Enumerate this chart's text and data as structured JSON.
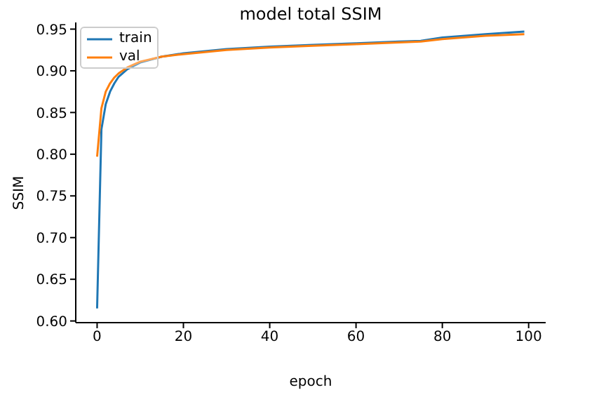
{
  "chart_data": {
    "type": "line",
    "title": "model total SSIM",
    "xlabel": "epoch",
    "ylabel": "SSIM",
    "xlim": [
      -4.95,
      103.95
    ],
    "xticks": [
      0,
      20,
      40,
      60,
      80,
      100
    ],
    "ylim": [
      0.598,
      0.958
    ],
    "yticks": [
      {
        "value": 0.6,
        "label": "0.60"
      },
      0.65,
      {
        "value": 0.7,
        "label": "0.70"
      },
      0.75,
      {
        "value": 0.8,
        "label": "0.80"
      },
      0.85,
      {
        "value": 0.9,
        "label": "0.90"
      },
      0.95
    ],
    "legend": "top left",
    "grid": false,
    "series": [
      {
        "name": "train",
        "color": "#1f77b4",
        "x": [
          0,
          1,
          2,
          3,
          4,
          5,
          7,
          10,
          15,
          20,
          30,
          40,
          50,
          60,
          70,
          75,
          80,
          90,
          99
        ],
        "values": [
          0.615,
          0.83,
          0.86,
          0.875,
          0.885,
          0.893,
          0.902,
          0.91,
          0.917,
          0.921,
          0.926,
          0.929,
          0.931,
          0.933,
          0.935,
          0.936,
          0.94,
          0.944,
          0.947
        ]
      },
      {
        "name": "val",
        "color": "#ff7f0e",
        "x": [
          0,
          1,
          2,
          3,
          4,
          5,
          7,
          10,
          15,
          20,
          30,
          40,
          50,
          60,
          70,
          75,
          80,
          90,
          99
        ],
        "values": [
          0.797,
          0.855,
          0.875,
          0.885,
          0.892,
          0.897,
          0.904,
          0.911,
          0.917,
          0.92,
          0.925,
          0.928,
          0.93,
          0.932,
          0.934,
          0.935,
          0.938,
          0.942,
          0.944
        ]
      }
    ]
  }
}
